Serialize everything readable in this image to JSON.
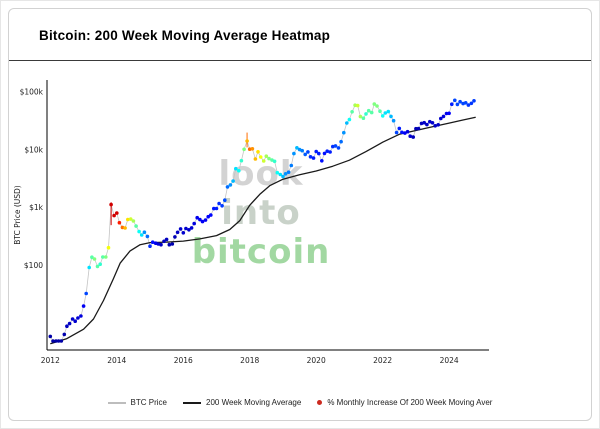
{
  "watermark": {
    "words": [
      {
        "text": "look",
        "color": "#c9c9c9"
      },
      {
        "text": "into",
        "color": "#bcc8bc"
      },
      {
        "text": "bitcoin",
        "color": "#8ccf8c"
      }
    ]
  },
  "legend": {
    "items": [
      {
        "label": "BTC Price",
        "type": "line",
        "color": "#bdbdbd"
      },
      {
        "label": "200 Week Moving Average",
        "type": "line",
        "color": "#1a1a1a"
      },
      {
        "label": "% Monthly Increase Of 200 Week Moving Aver",
        "type": "dot",
        "color": "#cc2a1f"
      }
    ]
  },
  "chart_data": {
    "type": "scatter",
    "title": "Bitcoin: 200 Week Moving Average Heatmap",
    "ylabel": "BTC Price (USD)",
    "y_scale": "log",
    "x_range": [
      2011.9,
      2025.2
    ],
    "y_range": [
      3.5,
      160000
    ],
    "grid": false,
    "legend_position": "bottom",
    "x_ticks": [
      {
        "value": 2012,
        "label": "2012"
      },
      {
        "value": 2014,
        "label": "2014"
      },
      {
        "value": 2016,
        "label": "2016"
      },
      {
        "value": 2018,
        "label": "2018"
      },
      {
        "value": 2020,
        "label": "2020"
      },
      {
        "value": 2022,
        "label": "2022"
      },
      {
        "value": 2024,
        "label": "2024"
      }
    ],
    "y_ticks": [
      {
        "value": 100000,
        "label": "$100k"
      },
      {
        "value": 10000,
        "label": "$10k"
      },
      {
        "value": 1000,
        "label": "$1k"
      },
      {
        "value": 100,
        "label": "$100"
      }
    ],
    "colormap": {
      "name": "jet",
      "pct_max": 13,
      "clamp_t": 0.92
    },
    "price_line_color": "#c4c4c4",
    "wma_line_color": "#1a1a1a",
    "series": [
      {
        "name": "BTC Price",
        "type": "line+markers",
        "color_by": "% monthly increase of 200 week moving average"
      },
      {
        "name": "200 Week Moving Average",
        "type": "line"
      }
    ],
    "price_points": [
      [
        2012.0,
        6,
        0.5
      ],
      [
        2012.08,
        5,
        0.5
      ],
      [
        2012.17,
        5,
        0.5
      ],
      [
        2012.25,
        5,
        0.5
      ],
      [
        2012.33,
        5,
        0.5
      ],
      [
        2012.42,
        6.5,
        0.6
      ],
      [
        2012.5,
        9,
        0.8
      ],
      [
        2012.58,
        10,
        0.9
      ],
      [
        2012.67,
        12,
        1.0
      ],
      [
        2012.75,
        11,
        1.0
      ],
      [
        2012.83,
        12.5,
        1.1
      ],
      [
        2012.92,
        13.5,
        1.2
      ],
      [
        2013.0,
        20,
        1.5
      ],
      [
        2013.08,
        33,
        2.5
      ],
      [
        2013.17,
        93,
        4.5
      ],
      [
        2013.25,
        140,
        6
      ],
      [
        2013.33,
        130,
        6.5
      ],
      [
        2013.42,
        97,
        6
      ],
      [
        2013.5,
        106,
        5.5
      ],
      [
        2013.58,
        141,
        6
      ],
      [
        2013.67,
        141,
        6.5
      ],
      [
        2013.75,
        204,
        8
      ],
      [
        2013.83,
        1130,
        14
      ],
      [
        2013.92,
        732,
        13
      ],
      [
        2014.0,
        806,
        12
      ],
      [
        2014.08,
        550,
        11
      ],
      [
        2014.17,
        458,
        10
      ],
      [
        2014.25,
        446,
        9
      ],
      [
        2014.33,
        627,
        8.5
      ],
      [
        2014.42,
        635,
        7.5
      ],
      [
        2014.5,
        589,
        7
      ],
      [
        2014.58,
        481,
        6
      ],
      [
        2014.67,
        387,
        5
      ],
      [
        2014.75,
        338,
        4.5
      ],
      [
        2014.83,
        378,
        3.5
      ],
      [
        2014.92,
        320,
        3
      ],
      [
        2015.0,
        217,
        2.2
      ],
      [
        2015.08,
        254,
        1.8
      ],
      [
        2015.17,
        244,
        1.4
      ],
      [
        2015.25,
        236,
        1.1
      ],
      [
        2015.33,
        230,
        0.9
      ],
      [
        2015.42,
        263,
        0.8
      ],
      [
        2015.5,
        284,
        0.8
      ],
      [
        2015.58,
        230,
        0.7
      ],
      [
        2015.67,
        236,
        0.6
      ],
      [
        2015.75,
        314,
        0.7
      ],
      [
        2015.83,
        377,
        0.9
      ],
      [
        2015.92,
        430,
        1.0
      ],
      [
        2016.0,
        369,
        1.0
      ],
      [
        2016.08,
        437,
        1.0
      ],
      [
        2016.17,
        416,
        1.0
      ],
      [
        2016.25,
        448,
        1.1
      ],
      [
        2016.33,
        531,
        1.2
      ],
      [
        2016.42,
        673,
        1.4
      ],
      [
        2016.5,
        624,
        1.5
      ],
      [
        2016.58,
        575,
        1.5
      ],
      [
        2016.67,
        610,
        1.5
      ],
      [
        2016.75,
        700,
        1.6
      ],
      [
        2016.83,
        745,
        1.7
      ],
      [
        2016.92,
        964,
        1.9
      ],
      [
        2017.0,
        970,
        2.0
      ],
      [
        2017.08,
        1180,
        2.2
      ],
      [
        2017.17,
        1080,
        2.4
      ],
      [
        2017.25,
        1350,
        2.6
      ],
      [
        2017.33,
        2290,
        3.0
      ],
      [
        2017.42,
        2480,
        3.5
      ],
      [
        2017.5,
        2875,
        4.0
      ],
      [
        2017.58,
        4703,
        4.5
      ],
      [
        2017.67,
        4360,
        5.0
      ],
      [
        2017.75,
        6468,
        5.5
      ],
      [
        2017.83,
        10198,
        6.5
      ],
      [
        2017.92,
        14156,
        9.0
      ],
      [
        2018.0,
        10221,
        10
      ],
      [
        2018.08,
        10397,
        9.5
      ],
      [
        2018.17,
        6938,
        9
      ],
      [
        2018.25,
        9240,
        8.5
      ],
      [
        2018.33,
        7494,
        8
      ],
      [
        2018.42,
        6404,
        7.5
      ],
      [
        2018.5,
        7729,
        7
      ],
      [
        2018.58,
        7037,
        6.5
      ],
      [
        2018.67,
        6625,
        6
      ],
      [
        2018.75,
        6317,
        5.5
      ],
      [
        2018.83,
        4017,
        5
      ],
      [
        2018.92,
        3743,
        4.5
      ],
      [
        2019.0,
        3457,
        4
      ],
      [
        2019.08,
        3854,
        3.5
      ],
      [
        2019.17,
        4105,
        3.2
      ],
      [
        2019.25,
        5350,
        3.2
      ],
      [
        2019.33,
        8574,
        3.5
      ],
      [
        2019.42,
        10817,
        4
      ],
      [
        2019.5,
        10085,
        3.5
      ],
      [
        2019.58,
        9630,
        3.2
      ],
      [
        2019.67,
        8308,
        2.8
      ],
      [
        2019.75,
        9199,
        2.5
      ],
      [
        2019.83,
        7569,
        2.2
      ],
      [
        2019.92,
        7193,
        2.0
      ],
      [
        2020.0,
        9350,
        2.0
      ],
      [
        2020.08,
        8599,
        2.0
      ],
      [
        2020.17,
        6438,
        1.8
      ],
      [
        2020.25,
        8658,
        1.8
      ],
      [
        2020.33,
        9461,
        2.0
      ],
      [
        2020.42,
        9137,
        2.0
      ],
      [
        2020.5,
        11351,
        2.2
      ],
      [
        2020.58,
        11655,
        2.5
      ],
      [
        2020.67,
        10784,
        2.5
      ],
      [
        2020.75,
        13797,
        3.0
      ],
      [
        2020.83,
        19713,
        3.5
      ],
      [
        2020.92,
        28994,
        4.0
      ],
      [
        2021.0,
        33114,
        5
      ],
      [
        2021.08,
        45137,
        6
      ],
      [
        2021.17,
        58786,
        7
      ],
      [
        2021.25,
        57750,
        7.5
      ],
      [
        2021.33,
        37332,
        7
      ],
      [
        2021.42,
        35040,
        6
      ],
      [
        2021.5,
        41626,
        5.5
      ],
      [
        2021.58,
        47166,
        6
      ],
      [
        2021.67,
        43790,
        6
      ],
      [
        2021.75,
        61318,
        6.5
      ],
      [
        2021.83,
        57005,
        6.5
      ],
      [
        2021.92,
        46306,
        6
      ],
      [
        2022.0,
        38483,
        5
      ],
      [
        2022.08,
        43193,
        4.5
      ],
      [
        2022.17,
        45538,
        4.5
      ],
      [
        2022.25,
        37714,
        4
      ],
      [
        2022.33,
        31792,
        3.5
      ],
      [
        2022.42,
        19784,
        2.5
      ],
      [
        2022.5,
        23336,
        2
      ],
      [
        2022.58,
        20049,
        1.8
      ],
      [
        2022.67,
        19431,
        1.5
      ],
      [
        2022.75,
        20495,
        1.2
      ],
      [
        2022.83,
        17168,
        1.0
      ],
      [
        2022.92,
        16547,
        0.8
      ],
      [
        2023.0,
        23139,
        0.7
      ],
      [
        2023.08,
        23147,
        0.7
      ],
      [
        2023.17,
        28478,
        0.8
      ],
      [
        2023.25,
        29268,
        0.9
      ],
      [
        2023.33,
        27219,
        0.9
      ],
      [
        2023.42,
        30477,
        1.0
      ],
      [
        2023.5,
        29230,
        1.0
      ],
      [
        2023.58,
        25931,
        0.9
      ],
      [
        2023.67,
        26967,
        0.9
      ],
      [
        2023.75,
        34667,
        1.0
      ],
      [
        2023.83,
        37712,
        1.2
      ],
      [
        2023.92,
        42265,
        1.4
      ],
      [
        2024.0,
        42580,
        1.6
      ],
      [
        2024.08,
        61198,
        2.0
      ],
      [
        2024.17,
        71333,
        2.5
      ],
      [
        2024.25,
        60636,
        2.5
      ],
      [
        2024.33,
        67491,
        2.5
      ],
      [
        2024.42,
        62678,
        2.5
      ],
      [
        2024.5,
        64619,
        2.5
      ],
      [
        2024.58,
        58969,
        2.3
      ],
      [
        2024.67,
        63329,
        2.3
      ],
      [
        2024.75,
        70000,
        2.4
      ]
    ],
    "wma_points": [
      [
        2012.0,
        4.5
      ],
      [
        2012.5,
        5.5
      ],
      [
        2013.0,
        8
      ],
      [
        2013.3,
        12
      ],
      [
        2013.6,
        25
      ],
      [
        2013.9,
        60
      ],
      [
        2014.1,
        110
      ],
      [
        2014.4,
        180
      ],
      [
        2014.7,
        230
      ],
      [
        2015.0,
        250
      ],
      [
        2015.5,
        255
      ],
      [
        2016.0,
        265
      ],
      [
        2016.5,
        290
      ],
      [
        2017.0,
        330
      ],
      [
        2017.4,
        420
      ],
      [
        2017.7,
        600
      ],
      [
        2018.0,
        1100
      ],
      [
        2018.3,
        1700
      ],
      [
        2018.6,
        2400
      ],
      [
        2019.0,
        3100
      ],
      [
        2019.5,
        3700
      ],
      [
        2020.0,
        4300
      ],
      [
        2020.5,
        5200
      ],
      [
        2021.0,
        6600
      ],
      [
        2021.5,
        9300
      ],
      [
        2022.0,
        13500
      ],
      [
        2022.5,
        18500
      ],
      [
        2023.0,
        21500
      ],
      [
        2023.5,
        25000
      ],
      [
        2024.0,
        28800
      ],
      [
        2024.4,
        32500
      ],
      [
        2024.8,
        36500
      ]
    ],
    "wicks": [
      [
        2013.83,
        500,
        1240,
        14
      ],
      [
        2017.92,
        11000,
        19800,
        10
      ]
    ]
  }
}
